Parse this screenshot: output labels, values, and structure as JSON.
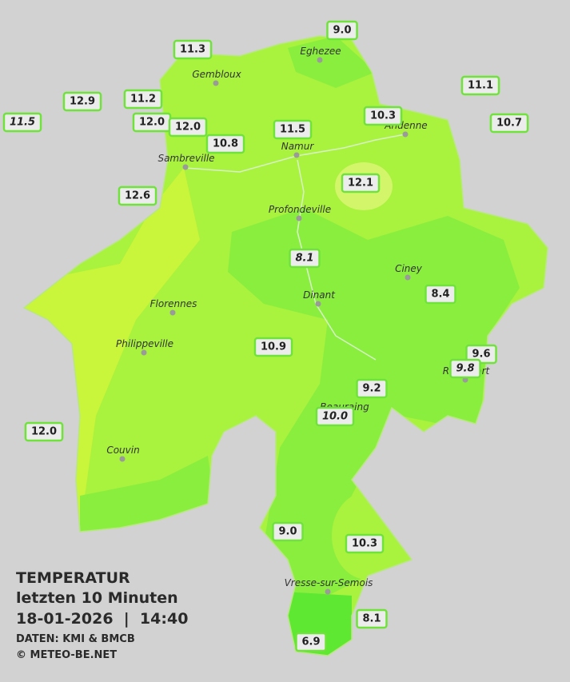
{
  "map": {
    "title": "TEMPERATUR",
    "subtitle": "letzten 10 Minuten",
    "datetime": "18-01-2026  |  14:40",
    "source": "DATEN: KMI & BMCB",
    "copyright": "© METEO-BE.NET",
    "cities": [
      "Eghezee",
      "Gembloux",
      "Andenne",
      "Namur",
      "Sambreville",
      "Profondeville",
      "Ciney",
      "Florennes",
      "Dinant",
      "Philippeville",
      "Rochefort",
      "Beauraing",
      "Couvin",
      "Vresse-sur-Semois"
    ],
    "stations": [
      {
        "value": "9.0"
      },
      {
        "value": "11.3"
      },
      {
        "value": "12.9"
      },
      {
        "value": "11.2"
      },
      {
        "value": "11.5",
        "italic": true
      },
      {
        "value": "12.0"
      },
      {
        "value": "12.0"
      },
      {
        "value": "10.8"
      },
      {
        "value": "11.5"
      },
      {
        "value": "10.3"
      },
      {
        "value": "11.1"
      },
      {
        "value": "10.7"
      },
      {
        "value": "12.1"
      },
      {
        "value": "12.6"
      },
      {
        "value": "8.1",
        "italic": true
      },
      {
        "value": "8.4"
      },
      {
        "value": "10.9"
      },
      {
        "value": "9.6"
      },
      {
        "value": "9.8",
        "italic": true
      },
      {
        "value": "9.2"
      },
      {
        "value": "10.0",
        "italic": true
      },
      {
        "value": "12.0"
      },
      {
        "value": "9.0"
      },
      {
        "value": "10.3"
      },
      {
        "value": "8.1"
      },
      {
        "value": "6.9"
      }
    ]
  }
}
